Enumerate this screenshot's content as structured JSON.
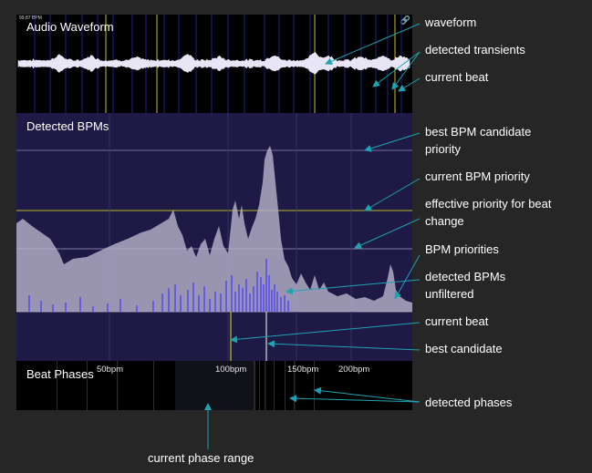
{
  "waveform_panel": {
    "title": "Audio Waveform",
    "bpm_readout": "99.87 BPM",
    "link_icon": "link-icon"
  },
  "bpm_panel": {
    "title": "Detected BPMs",
    "ticks": [
      "50bpm",
      "100bpm",
      "150bpm",
      "200bpm"
    ]
  },
  "phase_panel": {
    "title": "Beat Phases"
  },
  "annotations": {
    "waveform": "waveform",
    "detected_transients": "detected transients",
    "current_beat_top": "current beat",
    "best_candidate_priority": "best BPM candidate priority",
    "current_bpm_priority": "current BPM priority",
    "effective_priority": "effective priority for beat change",
    "bpm_priorities": "BPM priorities",
    "detected_bpms_unfiltered": "detected BPMs unfiltered",
    "current_beat_mid": "current beat",
    "best_candidate": "best candidate",
    "detected_phases": "detected phases",
    "current_phase_range": "current phase range"
  },
  "colors": {
    "background": "#262626",
    "bpm_panel": "#1e1a45",
    "priority_area": "#b4b0c8",
    "detected_bars": "#4c3cff",
    "current_beat_line": "#c8c020",
    "arrow": "#1fa3b3"
  }
}
